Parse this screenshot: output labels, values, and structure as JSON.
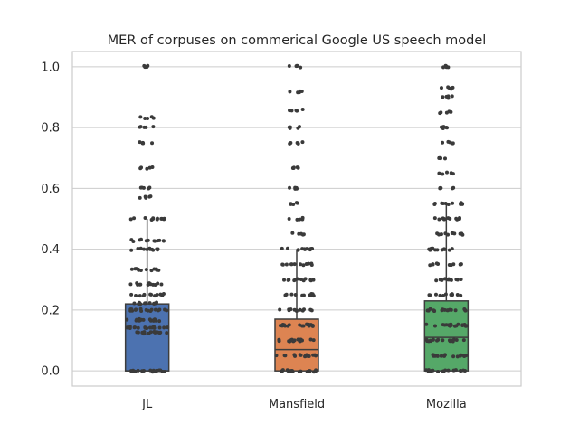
{
  "chart_data": {
    "type": "box",
    "title": "MER of corpuses on commerical Google US speech model",
    "xlabel": "",
    "ylabel": "",
    "categories": [
      "JL",
      "Mansfield",
      "Mozilla"
    ],
    "ylim": [
      -0.05,
      1.05
    ],
    "yticks": [
      0.0,
      0.2,
      0.4,
      0.6,
      0.8,
      1.0
    ],
    "ytick_labels": [
      "0.0",
      "0.2",
      "0.4",
      "0.6",
      "0.8",
      "1.0"
    ],
    "grid": true,
    "stripplot_overlay": true,
    "series": [
      {
        "category": "JL",
        "color": "#4c72b0",
        "min": 0.0,
        "q1": 0.0,
        "median": 0.0,
        "q3": 0.22,
        "max": 0.5,
        "levels": [
          0.0,
          0.125,
          0.143,
          0.167,
          0.2,
          0.222,
          0.25,
          0.286,
          0.333,
          0.4,
          0.429,
          0.5,
          0.571,
          0.6,
          0.667,
          0.75,
          0.8,
          0.833,
          1.0
        ]
      },
      {
        "category": "Mansfield",
        "color": "#dd8452",
        "min": 0.0,
        "q1": 0.0,
        "median": 0.07,
        "q3": 0.17,
        "max": 0.4,
        "levels": [
          0.0,
          0.05,
          0.1,
          0.15,
          0.2,
          0.25,
          0.3,
          0.35,
          0.4,
          0.45,
          0.5,
          0.55,
          0.6,
          0.667,
          0.75,
          0.8,
          0.857,
          0.917,
          1.0
        ]
      },
      {
        "category": "Mozilla",
        "color": "#55a868",
        "min": 0.0,
        "q1": 0.0,
        "median": 0.11,
        "q3": 0.23,
        "max": 0.55,
        "levels": [
          0.0,
          0.05,
          0.1,
          0.15,
          0.2,
          0.25,
          0.3,
          0.35,
          0.4,
          0.45,
          0.5,
          0.55,
          0.6,
          0.65,
          0.7,
          0.75,
          0.8,
          0.85,
          0.9,
          0.93,
          1.0
        ]
      }
    ]
  }
}
